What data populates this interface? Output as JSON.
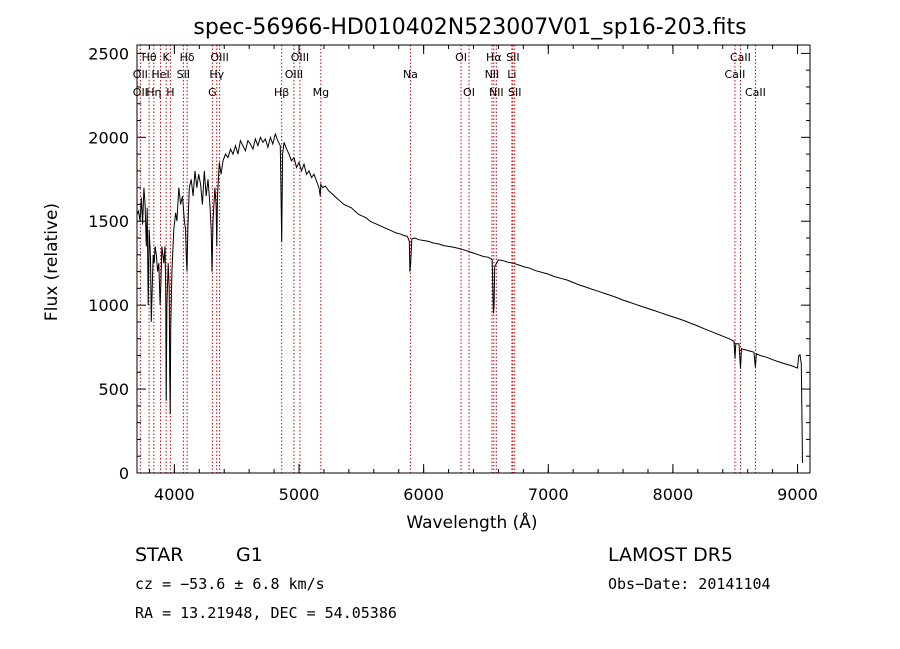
{
  "chart_data": {
    "type": "line",
    "title": "spec-56966-HD010402N523007V01_sp16-203.fits",
    "xlabel": "Wavelength (Å)",
    "ylabel": "Flux (relative)",
    "xlim": [
      3700,
      9100
    ],
    "ylim": [
      0,
      2550
    ],
    "x_ticks": [
      "4000",
      "5000",
      "6000",
      "7000",
      "8000",
      "9000"
    ],
    "y_ticks": [
      "0",
      "500",
      "1000",
      "1500",
      "2000",
      "2500"
    ],
    "grid": false,
    "legend": "none",
    "series": [
      {
        "points": [
          [
            3700,
            1540
          ],
          [
            3712,
            1560
          ],
          [
            3725,
            1500
          ],
          [
            3735,
            1640
          ],
          [
            3745,
            1480
          ],
          [
            3755,
            1700
          ],
          [
            3765,
            1600
          ],
          [
            3775,
            1350
          ],
          [
            3782,
            1580
          ],
          [
            3790,
            1000
          ],
          [
            3798,
            1450
          ],
          [
            3808,
            1280
          ],
          [
            3815,
            900
          ],
          [
            3822,
            1100
          ],
          [
            3830,
            1300
          ],
          [
            3838,
            1250
          ],
          [
            3845,
            1350
          ],
          [
            3855,
            1300
          ],
          [
            3865,
            1200
          ],
          [
            3875,
            1250
          ],
          [
            3885,
            1000
          ],
          [
            3890,
            1100
          ],
          [
            3900,
            1350
          ],
          [
            3915,
            1250
          ],
          [
            3925,
            1350
          ],
          [
            3930,
            1100
          ],
          [
            3934,
            430
          ],
          [
            3940,
            1000
          ],
          [
            3950,
            1250
          ],
          [
            3958,
            1100
          ],
          [
            3962,
            600
          ],
          [
            3966,
            350
          ],
          [
            3970,
            850
          ],
          [
            3980,
            1200
          ],
          [
            3995,
            1450
          ],
          [
            4010,
            1550
          ],
          [
            4020,
            1500
          ],
          [
            4035,
            1700
          ],
          [
            4050,
            1600
          ],
          [
            4065,
            1650
          ],
          [
            4080,
            1500
          ],
          [
            4090,
            1450
          ],
          [
            4095,
            1300
          ],
          [
            4101,
            1200
          ],
          [
            4108,
            1450
          ],
          [
            4120,
            1700
          ],
          [
            4135,
            1750
          ],
          [
            4150,
            1650
          ],
          [
            4165,
            1800
          ],
          [
            4180,
            1700
          ],
          [
            4195,
            1780
          ],
          [
            4210,
            1720
          ],
          [
            4225,
            1600
          ],
          [
            4240,
            1800
          ],
          [
            4255,
            1650
          ],
          [
            4270,
            1750
          ],
          [
            4285,
            1600
          ],
          [
            4295,
            1450
          ],
          [
            4302,
            1200
          ],
          [
            4310,
            1500
          ],
          [
            4325,
            1700
          ],
          [
            4335,
            1600
          ],
          [
            4340,
            1350
          ],
          [
            4346,
            1650
          ],
          [
            4360,
            1850
          ],
          [
            4375,
            1780
          ],
          [
            4390,
            1860
          ],
          [
            4410,
            1900
          ],
          [
            4430,
            1880
          ],
          [
            4450,
            1930
          ],
          [
            4470,
            1900
          ],
          [
            4490,
            1950
          ],
          [
            4510,
            1900
          ],
          [
            4530,
            1980
          ],
          [
            4550,
            1950
          ],
          [
            4570,
            1920
          ],
          [
            4590,
            1980
          ],
          [
            4610,
            1960
          ],
          [
            4630,
            1930
          ],
          [
            4650,
            1990
          ],
          [
            4670,
            1950
          ],
          [
            4690,
            2000
          ],
          [
            4710,
            1970
          ],
          [
            4730,
            1990
          ],
          [
            4750,
            1940
          ],
          [
            4770,
            2000
          ],
          [
            4790,
            1960
          ],
          [
            4810,
            2020
          ],
          [
            4830,
            1980
          ],
          [
            4850,
            1950
          ],
          [
            4861,
            1380
          ],
          [
            4868,
            1900
          ],
          [
            4880,
            1970
          ],
          [
            4900,
            1930
          ],
          [
            4920,
            1900
          ],
          [
            4940,
            1860
          ],
          [
            4960,
            1880
          ],
          [
            4980,
            1820
          ],
          [
            5000,
            1850
          ],
          [
            5020,
            1800
          ],
          [
            5040,
            1840
          ],
          [
            5060,
            1780
          ],
          [
            5080,
            1800
          ],
          [
            5100,
            1760
          ],
          [
            5120,
            1780
          ],
          [
            5140,
            1740
          ],
          [
            5160,
            1700
          ],
          [
            5170,
            1650
          ],
          [
            5175,
            1720
          ],
          [
            5190,
            1700
          ],
          [
            5210,
            1710
          ],
          [
            5240,
            1680
          ],
          [
            5270,
            1660
          ],
          [
            5300,
            1640
          ],
          [
            5330,
            1620
          ],
          [
            5360,
            1600
          ],
          [
            5390,
            1590
          ],
          [
            5420,
            1580
          ],
          [
            5450,
            1560
          ],
          [
            5480,
            1540
          ],
          [
            5510,
            1530
          ],
          [
            5540,
            1520
          ],
          [
            5570,
            1500
          ],
          [
            5600,
            1490
          ],
          [
            5630,
            1480
          ],
          [
            5660,
            1470
          ],
          [
            5690,
            1460
          ],
          [
            5720,
            1450
          ],
          [
            5750,
            1440
          ],
          [
            5780,
            1430
          ],
          [
            5810,
            1425
          ],
          [
            5840,
            1415
          ],
          [
            5870,
            1410
          ],
          [
            5885,
            1380
          ],
          [
            5890,
            1200
          ],
          [
            5896,
            1250
          ],
          [
            5905,
            1395
          ],
          [
            5930,
            1400
          ],
          [
            5960,
            1390
          ],
          [
            6000,
            1385
          ],
          [
            6040,
            1380
          ],
          [
            6080,
            1370
          ],
          [
            6120,
            1365
          ],
          [
            6160,
            1355
          ],
          [
            6200,
            1350
          ],
          [
            6240,
            1345
          ],
          [
            6280,
            1338
          ],
          [
            6320,
            1330
          ],
          [
            6360,
            1320
          ],
          [
            6400,
            1310
          ],
          [
            6440,
            1300
          ],
          [
            6480,
            1290
          ],
          [
            6520,
            1285
          ],
          [
            6550,
            1270
          ],
          [
            6560,
            950
          ],
          [
            6565,
            1000
          ],
          [
            6570,
            1230
          ],
          [
            6600,
            1270
          ],
          [
            6640,
            1265
          ],
          [
            6680,
            1255
          ],
          [
            6720,
            1250
          ],
          [
            6760,
            1240
          ],
          [
            6800,
            1230
          ],
          [
            6850,
            1220
          ],
          [
            6900,
            1205
          ],
          [
            6950,
            1195
          ],
          [
            7000,
            1185
          ],
          [
            7050,
            1170
          ],
          [
            7100,
            1160
          ],
          [
            7150,
            1150
          ],
          [
            7200,
            1135
          ],
          [
            7250,
            1120
          ],
          [
            7300,
            1108
          ],
          [
            7350,
            1095
          ],
          [
            7400,
            1083
          ],
          [
            7450,
            1070
          ],
          [
            7500,
            1058
          ],
          [
            7550,
            1045
          ],
          [
            7600,
            1030
          ],
          [
            7650,
            1018
          ],
          [
            7700,
            1005
          ],
          [
            7750,
            992
          ],
          [
            7800,
            980
          ],
          [
            7850,
            968
          ],
          [
            7900,
            955
          ],
          [
            7950,
            942
          ],
          [
            8000,
            930
          ],
          [
            8050,
            918
          ],
          [
            8100,
            905
          ],
          [
            8150,
            890
          ],
          [
            8200,
            876
          ],
          [
            8250,
            860
          ],
          [
            8300,
            845
          ],
          [
            8350,
            830
          ],
          [
            8400,
            815
          ],
          [
            8450,
            800
          ],
          [
            8490,
            785
          ],
          [
            8498,
            680
          ],
          [
            8505,
            770
          ],
          [
            8530,
            770
          ],
          [
            8542,
            620
          ],
          [
            8550,
            740
          ],
          [
            8600,
            730
          ],
          [
            8650,
            720
          ],
          [
            8662,
            630
          ],
          [
            8670,
            710
          ],
          [
            8700,
            700
          ],
          [
            8750,
            690
          ],
          [
            8800,
            675
          ],
          [
            8850,
            662
          ],
          [
            8900,
            650
          ],
          [
            8950,
            640
          ],
          [
            9000,
            625
          ],
          [
            9010,
            700
          ],
          [
            9020,
            705
          ],
          [
            9030,
            650
          ],
          [
            9040,
            60
          ]
        ]
      }
    ],
    "annotations": [
      {
        "label": "Hθ",
        "x": 3797,
        "row": 0
      },
      {
        "label": "OII",
        "x": 3727,
        "row": 1
      },
      {
        "label": "OII",
        "x": 3727,
        "row": 2
      },
      {
        "label": "Hη",
        "x": 3835,
        "row": 2
      },
      {
        "label": "HeI",
        "x": 3889,
        "row": 1
      },
      {
        "label": "K",
        "x": 3934,
        "row": 0
      },
      {
        "label": "H",
        "x": 3968,
        "row": 2
      },
      {
        "label": "Hδ",
        "x": 4102,
        "row": 0
      },
      {
        "label": "SII",
        "x": 4072,
        "row": 1
      },
      {
        "label": "OIII",
        "x": 4363,
        "row": 0
      },
      {
        "label": "Hγ",
        "x": 4340,
        "row": 1
      },
      {
        "label": "G",
        "x": 4305,
        "row": 2
      },
      {
        "label": "OIII",
        "x": 5007,
        "row": 0
      },
      {
        "label": "OIII",
        "x": 4959,
        "row": 1
      },
      {
        "label": "Hβ",
        "x": 4861,
        "row": 2
      },
      {
        "label": "Mg",
        "x": 5175,
        "row": 2
      },
      {
        "label": "Na",
        "x": 5894,
        "row": 1
      },
      {
        "label": "OI",
        "x": 6300,
        "row": 0
      },
      {
        "label": "OI",
        "x": 6364,
        "row": 2
      },
      {
        "label": "Hα",
        "x": 6563,
        "row": 0
      },
      {
        "label": "NII",
        "x": 6548,
        "row": 1
      },
      {
        "label": "NII",
        "x": 6583,
        "row": 2
      },
      {
        "label": "SII",
        "x": 6716,
        "row": 0
      },
      {
        "label": "Li",
        "x": 6708,
        "row": 1
      },
      {
        "label": "SII",
        "x": 6731,
        "row": 2
      },
      {
        "label": "CaII",
        "x": 8542,
        "row": 0
      },
      {
        "label": "CaII",
        "x": 8498,
        "row": 1
      },
      {
        "label": "CaII",
        "x": 8662,
        "row": 2
      }
    ],
    "line_markers": [
      3727,
      3797,
      3835,
      3889,
      3934,
      3968,
      4072,
      4102,
      4305,
      4340,
      4363,
      4861,
      4959,
      5007,
      5175,
      5894,
      6300,
      6364,
      6548,
      6563,
      6583,
      6708,
      6716,
      6731,
      8498,
      8542,
      8662
    ],
    "marker_color": "#cc0000",
    "line_color": "#000000"
  },
  "info": {
    "class": "STAR",
    "subclass": "G1",
    "survey": "LAMOST DR5",
    "cz": "cz = −53.6 ± 6.8 km/s",
    "obs_date": "Obs−Date: 20141104",
    "coords": "RA =  13.21948, DEC =  54.05386"
  }
}
